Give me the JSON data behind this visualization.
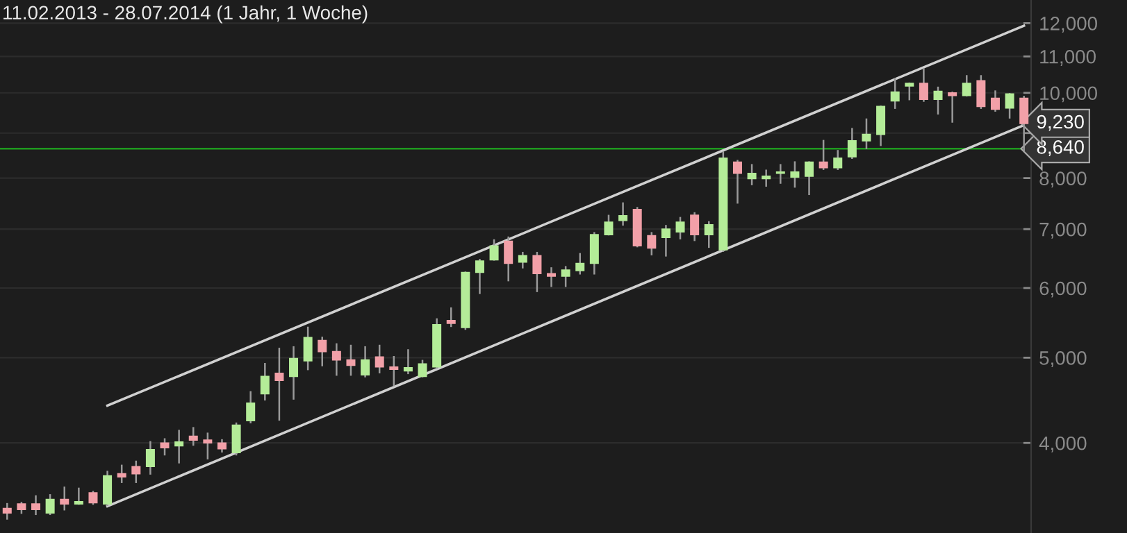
{
  "chart_data": {
    "type": "candlestick",
    "title": "11.02.2013 - 28.07.2014 (1 Jahr, 1 Woche)",
    "categories": [
      null,
      null,
      null,
      null,
      null,
      null,
      null,
      null,
      null,
      null,
      null,
      null,
      null,
      null,
      null,
      null,
      null,
      null,
      null,
      null,
      null,
      null,
      null,
      null,
      null,
      null,
      null,
      null,
      null,
      null,
      null,
      null,
      null,
      null,
      null,
      null,
      null,
      null,
      null,
      null,
      null,
      null,
      null,
      null,
      null,
      null,
      null,
      null,
      null,
      null,
      null,
      null,
      null,
      null,
      null,
      null,
      null,
      null,
      null,
      null,
      null,
      null,
      null,
      null,
      null,
      null,
      null,
      null,
      null,
      null,
      null,
      null
    ],
    "ohlc": [
      [
        3370,
        3410,
        3280,
        3330
      ],
      [
        3410,
        3420,
        3330,
        3360
      ],
      [
        3410,
        3480,
        3320,
        3360
      ],
      [
        3330,
        3490,
        3320,
        3450
      ],
      [
        3450,
        3560,
        3360,
        3410
      ],
      [
        3410,
        3550,
        3410,
        3430
      ],
      [
        3510,
        3520,
        3410,
        3420
      ],
      [
        3410,
        3710,
        3400,
        3670
      ],
      [
        3690,
        3770,
        3610,
        3660
      ],
      [
        3760,
        3810,
        3610,
        3690
      ],
      [
        3760,
        4010,
        3690,
        3930
      ],
      [
        4000,
        4040,
        3880,
        3950
      ],
      [
        3970,
        4130,
        3800,
        4010
      ],
      [
        4070,
        4160,
        3980,
        4030
      ],
      [
        4030,
        4100,
        3840,
        4000
      ],
      [
        4000,
        4030,
        3910,
        3940
      ],
      [
        3900,
        4210,
        3880,
        4190
      ],
      [
        4240,
        4570,
        4220,
        4440
      ],
      [
        4550,
        4920,
        4480,
        4760
      ],
      [
        4800,
        5120,
        4250,
        4710
      ],
      [
        4760,
        5140,
        4490,
        4990
      ],
      [
        4960,
        5410,
        4850,
        5270
      ],
      [
        5230,
        5270,
        4900,
        5080
      ],
      [
        5080,
        5180,
        4780,
        4970
      ],
      [
        4970,
        5160,
        4780,
        4900
      ],
      [
        4780,
        5140,
        4760,
        4970
      ],
      [
        5010,
        5160,
        4810,
        4880
      ],
      [
        4880,
        5010,
        4650,
        4850
      ],
      [
        4830,
        5100,
        4800,
        4870
      ],
      [
        4760,
        4960,
        4760,
        4920
      ],
      [
        4880,
        5530,
        4870,
        5450
      ],
      [
        5510,
        5690,
        5430,
        5470
      ],
      [
        5410,
        6250,
        5390,
        6250
      ],
      [
        6250,
        6460,
        5920,
        6440
      ],
      [
        6460,
        6800,
        6460,
        6700
      ],
      [
        6780,
        6850,
        6120,
        6400
      ],
      [
        6420,
        6580,
        6330,
        6530
      ],
      [
        6530,
        6580,
        5950,
        6230
      ],
      [
        6230,
        6320,
        6030,
        6190
      ],
      [
        6190,
        6340,
        6030,
        6290
      ],
      [
        6280,
        6560,
        6230,
        6400
      ],
      [
        6400,
        6930,
        6230,
        6900
      ],
      [
        6900,
        7250,
        6900,
        7130
      ],
      [
        7160,
        7490,
        7080,
        7250
      ],
      [
        7370,
        7400,
        6690,
        6700
      ],
      [
        6880,
        6930,
        6550,
        6660
      ],
      [
        6850,
        7060,
        6530,
        7000
      ],
      [
        6950,
        7210,
        6830,
        7130
      ],
      [
        7260,
        7300,
        6800,
        6900
      ],
      [
        6900,
        7130,
        6680,
        7080
      ],
      [
        6630,
        8560,
        6610,
        8430
      ],
      [
        8340,
        8370,
        7500,
        8100
      ],
      [
        7990,
        8280,
        7870,
        8100
      ],
      [
        7990,
        8160,
        7840,
        8040
      ],
      [
        8100,
        8280,
        7900,
        8130
      ],
      [
        8020,
        8340,
        7820,
        8130
      ],
      [
        8040,
        8340,
        7670,
        8340
      ],
      [
        8340,
        8820,
        8190,
        8220
      ],
      [
        8220,
        8590,
        8190,
        8430
      ],
      [
        8460,
        9100,
        8430,
        8820
      ],
      [
        8820,
        9330,
        8650,
        8970
      ],
      [
        8970,
        9650,
        8720,
        9650
      ],
      [
        9790,
        10370,
        9610,
        10020
      ],
      [
        10180,
        10250,
        9830,
        10250
      ],
      [
        10250,
        10640,
        9790,
        9830
      ],
      [
        9830,
        10140,
        9470,
        10040
      ],
      [
        10000,
        10010,
        9270,
        9930
      ],
      [
        9930,
        10450,
        9930,
        10250
      ],
      [
        10320,
        10450,
        9610,
        9650
      ],
      [
        9860,
        10040,
        9540,
        9580
      ],
      [
        9610,
        9970,
        9370,
        9970
      ],
      [
        9860,
        9900,
        8590,
        9230
      ]
    ],
    "series": [
      {
        "type": "line",
        "values": [
          null,
          null,
          null,
          null,
          null,
          null,
          null,
          4410,
          null,
          null,
          null,
          null,
          null,
          null,
          null,
          null,
          null,
          null,
          null,
          null,
          null,
          null,
          null,
          null,
          null,
          null,
          null,
          null,
          null,
          null,
          null,
          null,
          null,
          null,
          null,
          null,
          null,
          null,
          null,
          null,
          null,
          null,
          null,
          null,
          null,
          null,
          null,
          null,
          null,
          null,
          null,
          null,
          null,
          null,
          null,
          null,
          null,
          null,
          null,
          null,
          null,
          null,
          null,
          null,
          null,
          null,
          null,
          null,
          null,
          null,
          null,
          11920
        ],
        "color": "#d0d0d0"
      },
      {
        "type": "line",
        "values": [
          null,
          null,
          null,
          null,
          null,
          null,
          null,
          3390,
          null,
          null,
          null,
          null,
          null,
          null,
          null,
          null,
          null,
          null,
          null,
          null,
          null,
          null,
          null,
          null,
          null,
          null,
          null,
          null,
          null,
          null,
          null,
          null,
          null,
          null,
          null,
          null,
          null,
          null,
          null,
          null,
          null,
          null,
          null,
          null,
          null,
          null,
          null,
          null,
          null,
          null,
          null,
          null,
          null,
          null,
          null,
          null,
          null,
          null,
          null,
          null,
          null,
          null,
          null,
          null,
          null,
          null,
          null,
          null,
          null,
          null,
          null,
          9190
        ],
        "color": "#d0d0d0"
      }
    ],
    "ylim": [
      3160,
      12750
    ],
    "log": true,
    "yticks": [
      {
        "value": 4000,
        "label": "4,000"
      },
      {
        "value": 5000,
        "label": "5,000"
      },
      {
        "value": 6000,
        "label": "6,000"
      },
      {
        "value": 7000,
        "label": "7,000"
      },
      {
        "value": 8000,
        "label": "8,000"
      },
      {
        "value": 9000,
        "label": null
      },
      {
        "value": 10000,
        "label": "10,000"
      },
      {
        "value": 11000,
        "label": "11,000"
      },
      {
        "value": 12000,
        "label": "12,000"
      }
    ],
    "grid": "y",
    "tick_labels": "y",
    "ref_lines": [
      {
        "axis": "y",
        "value": 8640,
        "label": "8,640",
        "color": "#1f9a1f"
      }
    ],
    "annotations": [
      "9,230"
    ]
  }
}
